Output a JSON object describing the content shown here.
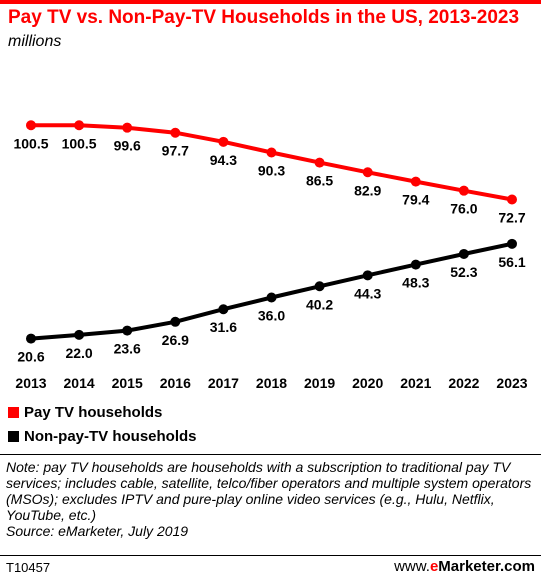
{
  "header": {
    "title": "Pay TV vs. Non-Pay-TV Households in the US, 2013-2023",
    "subtitle": "millions"
  },
  "colors": {
    "accent": "#ff0000",
    "pay_tv": "#ff0000",
    "non_pay_tv": "#000000"
  },
  "chart_data": {
    "type": "line",
    "title": "Pay TV vs. Non-Pay-TV Households in the US, 2013-2023",
    "subtitle": "millions",
    "x": [
      "2013",
      "2014",
      "2015",
      "2016",
      "2017",
      "2018",
      "2019",
      "2020",
      "2021",
      "2022",
      "2023"
    ],
    "series": [
      {
        "name": "Pay TV households",
        "color": "#ff0000",
        "values": [
          100.5,
          100.5,
          99.6,
          97.7,
          94.3,
          90.3,
          86.5,
          82.9,
          79.4,
          76.0,
          72.7
        ],
        "labels": [
          "100.5",
          "100.5",
          "99.6",
          "97.7",
          "94.3",
          "90.3",
          "86.5",
          "82.9",
          "79.4",
          "76.0",
          "72.7"
        ],
        "label_position": "below"
      },
      {
        "name": "Non-pay-TV households",
        "color": "#000000",
        "values": [
          20.6,
          22.0,
          23.6,
          26.9,
          31.6,
          36.0,
          40.2,
          44.3,
          48.3,
          52.3,
          56.1
        ],
        "labels": [
          "20.6",
          "22.0",
          "23.6",
          "26.9",
          "31.6",
          "36.0",
          "40.2",
          "44.3",
          "48.3",
          "52.3",
          "56.1"
        ],
        "label_position": "below"
      }
    ],
    "xlabel": "",
    "ylabel": "",
    "grid": false,
    "legend_position": "bottom-left"
  },
  "legend": {
    "items": [
      {
        "label": "Pay TV households",
        "color": "#ff0000"
      },
      {
        "label": "Non-pay-TV households",
        "color": "#000000"
      }
    ]
  },
  "note": {
    "text": "Note: pay TV households are households with a subscription to traditional pay TV services; includes cable, satellite, telco/fiber operators and multiple system operators (MSOs); excludes IPTV and pure-play online video services (e.g., Hulu, Netflix, YouTube, etc.)",
    "source": "Source: eMarketer, July 2019"
  },
  "footer": {
    "code": "T10457",
    "logo_prefix": "www.",
    "logo_e": "e",
    "logo_rest": "Marketer.com"
  }
}
